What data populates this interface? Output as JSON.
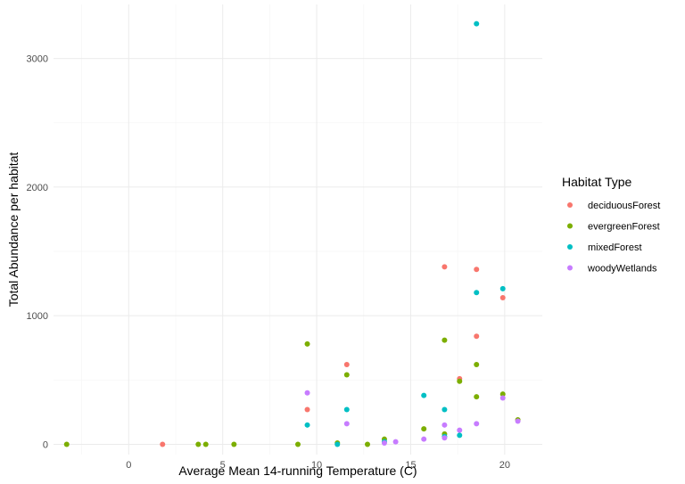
{
  "chart_data": {
    "type": "scatter",
    "title": "",
    "xlabel": "Average Mean 14-running Temperature (C)",
    "ylabel": "Total Abundance per habitat",
    "xlim": [
      -4,
      22
    ],
    "ylim": [
      -80,
      3420
    ],
    "x_ticks": [
      0,
      5,
      10,
      15,
      20
    ],
    "y_ticks": [
      0,
      1000,
      2000,
      3000
    ],
    "grid": true,
    "legend": {
      "title": "Habitat Type",
      "placement": "right"
    },
    "series": [
      {
        "name": "deciduousForest",
        "color": "#F8766D",
        "points": [
          [
            1.8,
            0
          ],
          [
            9.5,
            270
          ],
          [
            11.6,
            620
          ],
          [
            16.8,
            1380
          ],
          [
            17.6,
            510
          ],
          [
            18.5,
            1360
          ],
          [
            18.5,
            840
          ],
          [
            19.9,
            1140
          ]
        ]
      },
      {
        "name": "evergreenForest",
        "color": "#7CAE00",
        "points": [
          [
            -3.3,
            0
          ],
          [
            3.7,
            0
          ],
          [
            4.1,
            0
          ],
          [
            5.6,
            0
          ],
          [
            9.0,
            0
          ],
          [
            9.5,
            780
          ],
          [
            11.1,
            10
          ],
          [
            11.6,
            540
          ],
          [
            12.7,
            0
          ],
          [
            13.6,
            40
          ],
          [
            15.7,
            120
          ],
          [
            16.8,
            810
          ],
          [
            16.8,
            80
          ],
          [
            17.6,
            490
          ],
          [
            18.5,
            620
          ],
          [
            18.5,
            370
          ],
          [
            19.9,
            390
          ],
          [
            20.7,
            190
          ]
        ]
      },
      {
        "name": "mixedForest",
        "color": "#00BFC4",
        "points": [
          [
            9.5,
            150
          ],
          [
            11.1,
            0
          ],
          [
            11.6,
            270
          ],
          [
            13.6,
            20
          ],
          [
            15.7,
            380
          ],
          [
            16.8,
            270
          ],
          [
            16.8,
            60
          ],
          [
            17.6,
            70
          ],
          [
            18.5,
            1180
          ],
          [
            18.5,
            3270
          ],
          [
            19.9,
            1210
          ]
        ]
      },
      {
        "name": "woodyWetlands",
        "color": "#C77CFF",
        "points": [
          [
            9.5,
            400
          ],
          [
            11.6,
            160
          ],
          [
            13.6,
            10
          ],
          [
            14.2,
            20
          ],
          [
            15.7,
            40
          ],
          [
            16.8,
            150
          ],
          [
            16.8,
            50
          ],
          [
            17.6,
            110
          ],
          [
            18.5,
            160
          ],
          [
            19.9,
            360
          ],
          [
            20.7,
            180
          ]
        ]
      }
    ]
  }
}
